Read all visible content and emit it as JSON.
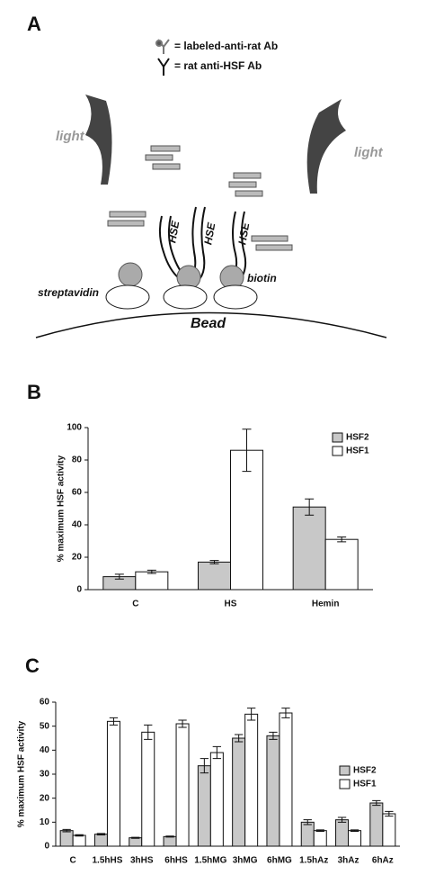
{
  "diagram": {
    "panel_label": "A",
    "key_labeled": "= labeled-anti-rat Ab",
    "key_rat": "= rat anti-HSF Ab",
    "light_left": "light",
    "light_right": "light",
    "hse": [
      "HSE",
      "HSE",
      "HSE"
    ],
    "biotin": "biotin",
    "streptavidin": "streptavidin",
    "bead": "Bead"
  },
  "chart_data": [
    {
      "type": "bar",
      "panel_label": "B",
      "ylabel": "% maximum HSF activity",
      "categories": [
        "C",
        "HS",
        "Hemin"
      ],
      "series": [
        {
          "name": "HSF2",
          "color": "#c8c8c8",
          "values": [
            8,
            17,
            51
          ],
          "errors": [
            1.5,
            1,
            5
          ]
        },
        {
          "name": "HSF1",
          "color": "#ffffff",
          "values": [
            11,
            86,
            31
          ],
          "errors": [
            1,
            13,
            1.5
          ]
        }
      ],
      "ylim": [
        0,
        100
      ],
      "yticks": [
        0,
        20,
        40,
        60,
        80,
        100
      ],
      "legend": "top-right"
    },
    {
      "type": "bar",
      "panel_label": "C",
      "ylabel": "% maximum HSF activity",
      "categories": [
        "C",
        "1.5hHS",
        "3hHS",
        "6hHS",
        "1.5hMG",
        "3hMG",
        "6hMG",
        "1.5hAz",
        "3hAz",
        "6hAz"
      ],
      "series": [
        {
          "name": "HSF2",
          "color": "#c8c8c8",
          "values": [
            6.5,
            5,
            3.5,
            4,
            33.5,
            45,
            46,
            10,
            11,
            18
          ],
          "errors": [
            0.5,
            0.3,
            0.2,
            0.2,
            3,
            1.5,
            1.5,
            1,
            1,
            1
          ]
        },
        {
          "name": "HSF1",
          "color": "#ffffff",
          "values": [
            4.5,
            52,
            47.5,
            51,
            39,
            55,
            55.5,
            6.5,
            6.5,
            13.5
          ],
          "errors": [
            0.3,
            1.5,
            3,
            1.5,
            2.5,
            2.5,
            2,
            0.3,
            0.3,
            1
          ]
        }
      ],
      "ylim": [
        0,
        60
      ],
      "yticks": [
        0,
        10,
        20,
        30,
        40,
        50,
        60
      ],
      "legend": "right"
    }
  ]
}
